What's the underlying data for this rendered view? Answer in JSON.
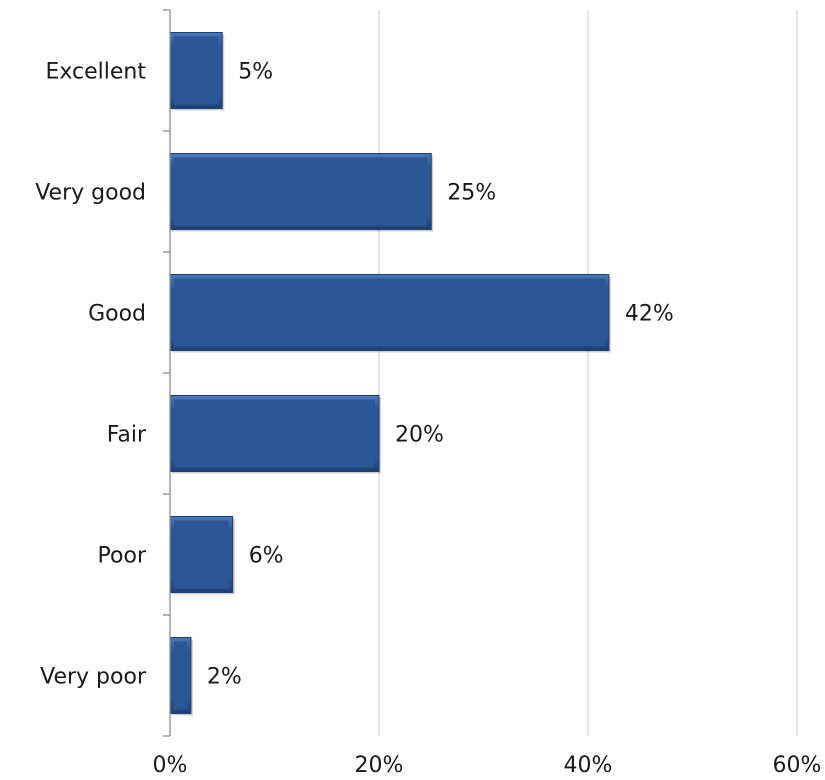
{
  "chart_data": {
    "type": "bar",
    "orientation": "horizontal",
    "categories": [
      "Excellent",
      "Very good",
      "Good",
      "Fair",
      "Poor",
      "Very poor"
    ],
    "values": [
      5,
      25,
      42,
      20,
      6,
      2
    ],
    "data_labels": [
      "5%",
      "25%",
      "42%",
      "20%",
      "6%",
      "2%"
    ],
    "xlim": [
      0,
      60
    ],
    "x_ticks": [
      0,
      20,
      40,
      60
    ],
    "x_tick_labels": [
      "0%",
      "20%",
      "40%",
      "60%"
    ],
    "title": "",
    "xlabel": "",
    "ylabel": "",
    "grid": "vertical gridlines",
    "legend": "none",
    "colors": {
      "bar": "#2b5797",
      "bar_highlight": "#4a78b8",
      "bar_edge": "#1c3f73",
      "gridline": "#d9d9d9",
      "axis": "#8c8c8c"
    }
  }
}
